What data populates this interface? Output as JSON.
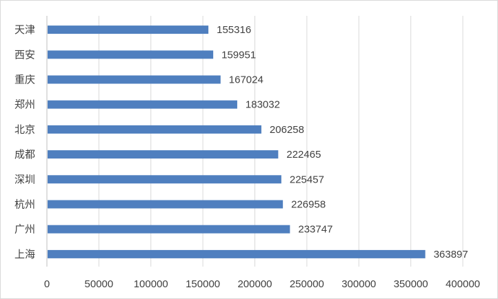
{
  "chart_data": {
    "type": "bar",
    "orientation": "horizontal",
    "categories": [
      "天津",
      "西安",
      "重庆",
      "郑州",
      "北京",
      "成都",
      "深圳",
      "杭州",
      "广州",
      "上海"
    ],
    "values": [
      155316,
      159951,
      167024,
      183032,
      206258,
      222465,
      225457,
      226958,
      233747,
      363897
    ],
    "xlim": [
      0,
      400000
    ],
    "xticks": [
      0,
      50000,
      100000,
      150000,
      200000,
      250000,
      300000,
      350000,
      400000
    ],
    "grid": "vertical",
    "legend": "none",
    "data_labels": true,
    "colors": {
      "bar": "#4f7fbf",
      "grid": "#d9d9d9",
      "text": "#404040",
      "border": "#d9d9d9"
    }
  }
}
